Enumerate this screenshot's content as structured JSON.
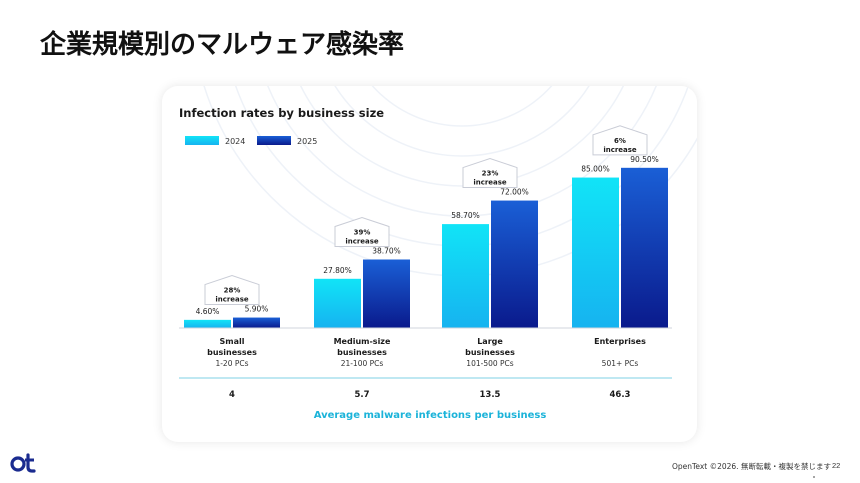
{
  "page": {
    "title": "企業規模別のマルウェア感染率",
    "footer": "OpenText ©2026. 無断転載・複製を禁じます",
    "page_number": "22",
    "logo_icon": "opentext-logo-icon"
  },
  "colors": {
    "series_2024_top": "#11e4f7",
    "series_2024_bottom": "#16b3f0",
    "series_2025_top": "#1a5fd6",
    "series_2025_bottom": "#0a1a8c",
    "accent_text": "#1bb3d9",
    "logo": "#1a2b8f"
  },
  "chart_data": {
    "type": "bar",
    "title": "Infection rates by business size",
    "categories": [
      {
        "name": "Small businesses",
        "lines": [
          "Small",
          "businesses"
        ],
        "sub": "1-20 PCs",
        "avg": "4",
        "increase": "28%"
      },
      {
        "name": "Medium-size businesses",
        "lines": [
          "Medium-size",
          "businesses"
        ],
        "sub": "21-100 PCs",
        "avg": "5.7",
        "increase": "39%"
      },
      {
        "name": "Large businesses",
        "lines": [
          "Large",
          "businesses"
        ],
        "sub": "101-500 PCs",
        "avg": "13.5",
        "increase": "23%"
      },
      {
        "name": "Enterprises",
        "lines": [
          "Enterprises"
        ],
        "sub": "501+ PCs",
        "avg": "46.3",
        "increase": "6%"
      }
    ],
    "series": [
      {
        "name": "2024",
        "values": [
          4.6,
          27.8,
          58.7,
          85.0
        ],
        "labels": [
          "4.60%",
          "27.80%",
          "58.70%",
          "85.00%"
        ]
      },
      {
        "name": "2025",
        "values": [
          5.9,
          38.7,
          72.0,
          90.5
        ],
        "labels": [
          "5.90%",
          "38.70%",
          "72.00%",
          "90.50%"
        ]
      }
    ],
    "increase_word": "increase",
    "avg_label": "Average malware infections per business",
    "ylim": [
      0,
      100
    ],
    "grid": false,
    "legend": "top-left"
  }
}
